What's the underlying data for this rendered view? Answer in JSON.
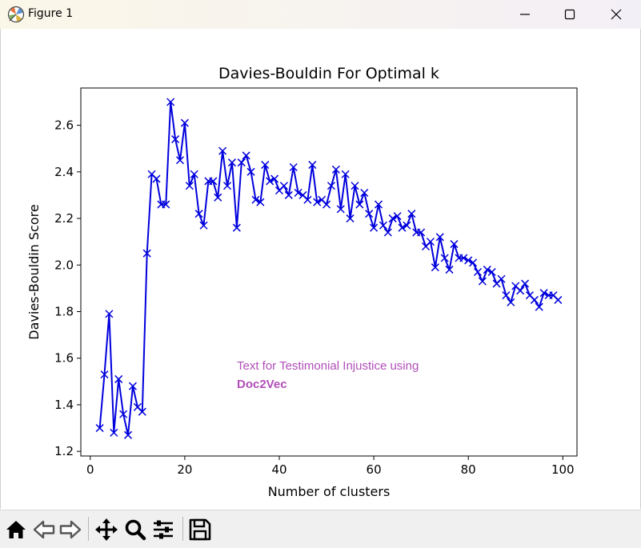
{
  "window": {
    "title": "Figure 1",
    "app_icon": "matplotlib-figure-icon",
    "controls": [
      "minimize-icon",
      "maximize-icon",
      "close-icon"
    ]
  },
  "toolbar": {
    "items": [
      "home-icon",
      "back-arrow-icon",
      "forward-arrow-icon",
      "pan-move-icon",
      "zoom-magnifier-icon",
      "configure-subplots-icon",
      "save-disk-icon"
    ]
  },
  "chart_data": {
    "type": "line",
    "title": "Davies-Bouldin For Optimal k",
    "xlabel": "Number of clusters",
    "ylabel": "Davies-Bouldin Score",
    "xlim": [
      -2,
      103
    ],
    "ylim": [
      1.18,
      2.76
    ],
    "xticks": [
      0,
      20,
      40,
      60,
      80,
      100
    ],
    "yticks": [
      1.2,
      1.4,
      1.6,
      1.8,
      2.0,
      2.2,
      2.4,
      2.6
    ],
    "grid": false,
    "marker": "x",
    "color": "#0000dd",
    "annotation": {
      "line1": "Text for Testimonial Injustice using",
      "line2": "Doc2Vec",
      "color": "#b04fb8"
    },
    "x": [
      2,
      3,
      4,
      5,
      6,
      7,
      8,
      9,
      10,
      11,
      12,
      13,
      14,
      15,
      16,
      17,
      18,
      19,
      20,
      21,
      22,
      23,
      24,
      25,
      26,
      27,
      28,
      29,
      30,
      31,
      32,
      33,
      34,
      35,
      36,
      37,
      38,
      39,
      40,
      41,
      42,
      43,
      44,
      45,
      46,
      47,
      48,
      49,
      50,
      51,
      52,
      53,
      54,
      55,
      56,
      57,
      58,
      59,
      60,
      61,
      62,
      63,
      64,
      65,
      66,
      67,
      68,
      69,
      70,
      71,
      72,
      73,
      74,
      75,
      76,
      77,
      78,
      79,
      80,
      81,
      82,
      83,
      84,
      85,
      86,
      87,
      88,
      89,
      90,
      91,
      92,
      93,
      94,
      95,
      96,
      97,
      98,
      99
    ],
    "y": [
      1.3,
      1.53,
      1.79,
      1.28,
      1.51,
      1.36,
      1.27,
      1.48,
      1.39,
      1.37,
      2.05,
      2.39,
      2.37,
      2.26,
      2.26,
      2.7,
      2.54,
      2.45,
      2.61,
      2.34,
      2.39,
      2.22,
      2.17,
      2.36,
      2.36,
      2.29,
      2.49,
      2.34,
      2.44,
      2.16,
      2.44,
      2.47,
      2.4,
      2.28,
      2.27,
      2.43,
      2.36,
      2.37,
      2.32,
      2.34,
      2.3,
      2.42,
      2.31,
      2.3,
      2.28,
      2.43,
      2.27,
      2.28,
      2.26,
      2.34,
      2.41,
      2.24,
      2.39,
      2.2,
      2.34,
      2.26,
      2.31,
      2.22,
      2.16,
      2.26,
      2.17,
      2.14,
      2.2,
      2.21,
      2.16,
      2.17,
      2.22,
      2.14,
      2.14,
      2.08,
      2.1,
      1.99,
      2.12,
      2.03,
      1.98,
      2.09,
      2.03,
      2.03,
      2.02,
      2.01,
      1.97,
      1.93,
      1.98,
      1.97,
      1.92,
      1.94,
      1.87,
      1.84,
      1.91,
      1.89,
      1.92,
      1.87,
      1.85,
      1.82,
      1.88,
      1.87,
      1.87,
      1.85
    ]
  }
}
